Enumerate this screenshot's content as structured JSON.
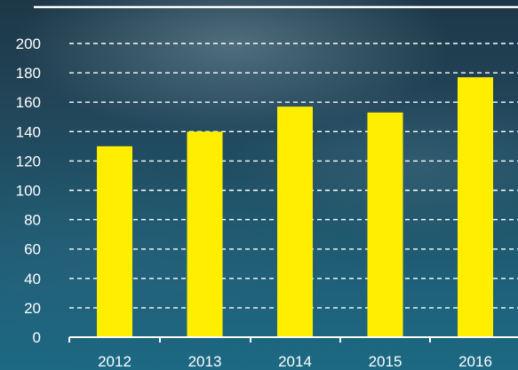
{
  "chart_data": {
    "type": "bar",
    "categories": [
      "2012",
      "2013",
      "2014",
      "2015",
      "2016"
    ],
    "values": [
      130,
      140,
      157,
      153,
      177
    ],
    "yticks": [
      0,
      20,
      40,
      60,
      80,
      100,
      120,
      140,
      160,
      180,
      200
    ],
    "ylim": [
      0,
      200
    ],
    "grid": true,
    "grid_style": "dashed",
    "bar_color": "#ffee00",
    "grid_color": "#ffffff",
    "axis_color": "#ffffff"
  }
}
